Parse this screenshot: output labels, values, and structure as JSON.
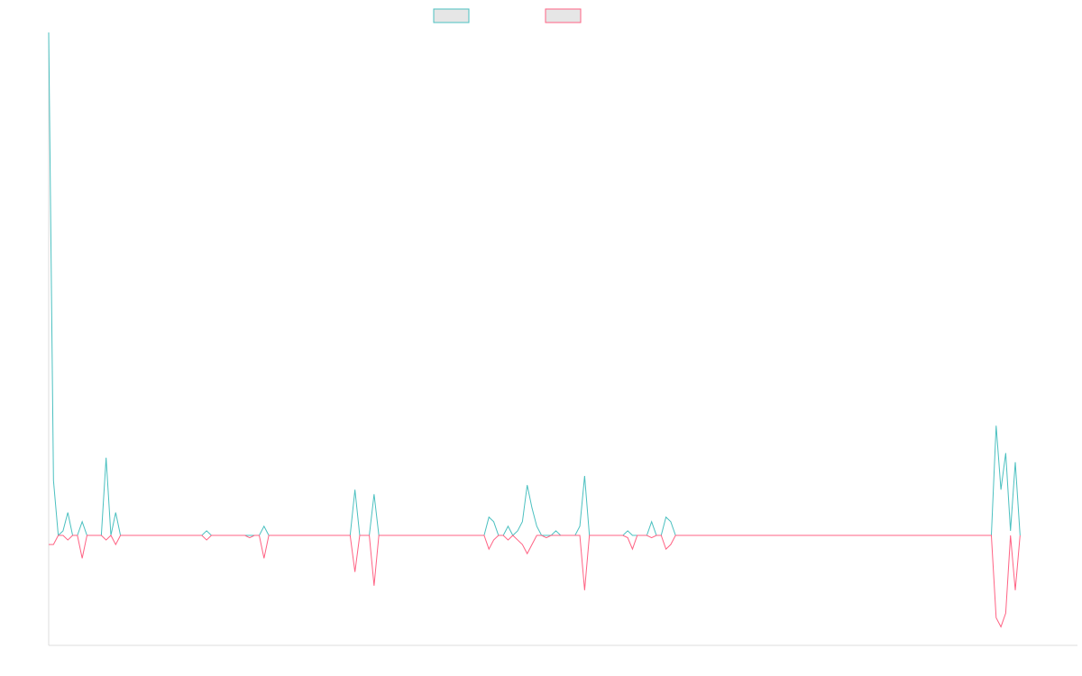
{
  "chart_data": {
    "type": "line",
    "title": "",
    "xlabel": "",
    "ylabel": "",
    "grid": false,
    "legend_position": "top-center",
    "x_count": 216,
    "ylim": [
      -20,
      110
    ],
    "series": [
      {
        "name": "",
        "color": "#4bc0c0",
        "values": [
          110,
          12,
          0,
          1,
          5,
          0,
          0,
          3,
          0,
          0,
          0,
          0,
          17,
          0,
          5,
          0,
          0,
          0,
          0,
          0,
          0,
          0,
          0,
          0,
          0,
          0,
          0,
          0,
          0,
          0,
          0,
          0,
          0,
          1,
          0,
          0,
          0,
          0,
          0,
          0,
          0,
          0,
          0,
          0,
          0,
          2,
          0,
          0,
          0,
          0,
          0,
          0,
          0,
          0,
          0,
          0,
          0,
          0,
          0,
          0,
          0,
          0,
          0,
          0,
          10,
          0,
          0,
          0,
          9,
          0,
          0,
          0,
          0,
          0,
          0,
          0,
          0,
          0,
          0,
          0,
          0,
          0,
          0,
          0,
          0,
          0,
          0,
          0,
          0,
          0,
          0,
          0,
          4,
          3,
          0,
          0,
          2,
          0,
          1,
          3,
          11,
          6,
          2,
          0,
          0,
          0,
          1,
          0,
          0,
          0,
          0,
          2,
          13,
          0,
          0,
          0,
          0,
          0,
          0,
          0,
          0,
          1,
          0,
          0,
          0,
          0,
          3,
          0,
          0,
          4,
          3,
          0,
          0,
          0,
          0,
          0,
          0,
          0,
          0,
          0,
          0,
          0,
          0,
          0,
          0,
          0,
          0,
          0,
          0,
          0,
          0,
          0,
          0,
          0,
          0,
          0,
          0,
          0,
          0,
          0,
          0,
          0,
          0,
          0,
          0,
          0,
          0,
          0,
          0,
          0,
          0,
          0,
          0,
          0,
          0,
          0,
          0,
          0,
          0,
          0,
          0,
          0,
          0,
          0,
          0,
          0,
          0,
          0,
          0,
          0,
          0,
          0,
          0,
          0,
          0,
          0,
          0,
          0,
          24,
          10,
          18,
          1,
          16,
          0
        ]
      },
      {
        "name": "",
        "color": "#ff6384",
        "values": [
          -2,
          -2,
          0,
          0,
          -1,
          0,
          0,
          -5,
          0,
          0,
          0,
          0,
          -1,
          0,
          -2,
          0,
          0,
          0,
          0,
          0,
          0,
          0,
          0,
          0,
          0,
          0,
          0,
          0,
          0,
          0,
          0,
          0,
          0,
          -1,
          0,
          0,
          0,
          0,
          0,
          0,
          0,
          0,
          -0.5,
          0,
          0,
          -5,
          0,
          0,
          0,
          0,
          0,
          0,
          0,
          0,
          0,
          0,
          0,
          0,
          0,
          0,
          0,
          0,
          0,
          0,
          -8,
          0,
          0,
          0,
          -11,
          0,
          0,
          0,
          0,
          0,
          0,
          0,
          0,
          0,
          0,
          0,
          0,
          0,
          0,
          0,
          0,
          0,
          0,
          0,
          0,
          0,
          0,
          0,
          -3,
          -1,
          0,
          0,
          -1,
          0,
          -1,
          -2,
          -4,
          -2,
          0,
          0,
          -0.5,
          0,
          0,
          0,
          0,
          0,
          0,
          0,
          -12,
          0,
          0,
          0,
          0,
          0,
          0,
          0,
          0,
          -0.5,
          -3,
          0,
          0,
          0,
          -0.5,
          0,
          0,
          -3,
          -2,
          0,
          0,
          0,
          0,
          0,
          0,
          0,
          0,
          0,
          0,
          0,
          0,
          0,
          0,
          0,
          0,
          0,
          0,
          0,
          0,
          0,
          0,
          0,
          0,
          0,
          0,
          0,
          0,
          0,
          0,
          0,
          0,
          0,
          0,
          0,
          0,
          0,
          0,
          0,
          0,
          0,
          0,
          0,
          0,
          0,
          0,
          0,
          0,
          0,
          0,
          0,
          0,
          0,
          0,
          0,
          0,
          0,
          0,
          0,
          0,
          0,
          0,
          0,
          0,
          0,
          0,
          0,
          -18,
          -20,
          -17,
          0,
          -12,
          0
        ]
      }
    ]
  }
}
